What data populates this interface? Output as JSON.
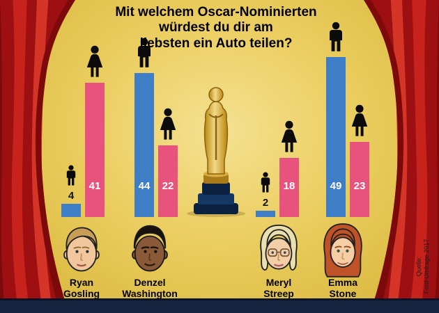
{
  "title": {
    "lines": [
      "Mit welchem Oscar-Nominierten",
      "würdest du dir am",
      "liebsten ein Auto teilen?"
    ]
  },
  "chart_data": {
    "type": "bar",
    "title": "Mit welchem Oscar-Nominierten würdest du dir am liebsten ein Auto teilen?",
    "categories": [
      "Ryan Gosling",
      "Denzel Washington",
      "Meryl Streep",
      "Emma Stone"
    ],
    "series": [
      {
        "name": "male",
        "icon": "male-pictogram-icon",
        "color": "#3d7ec6",
        "values": [
          4,
          44,
          2,
          49
        ]
      },
      {
        "name": "female",
        "icon": "female-pictogram-icon",
        "color": "#e8537d",
        "values": [
          41,
          22,
          18,
          23
        ]
      }
    ],
    "ylim": [
      0,
      50
    ],
    "value_labels": true,
    "legend_position": "pictograms-above-bars",
    "grid": false
  },
  "people": [
    {
      "first": "Ryan",
      "last": "Gosling"
    },
    {
      "first": "Denzel",
      "last": "Washington"
    },
    {
      "first": "Meryl",
      "last": "Streep"
    },
    {
      "first": "Emma",
      "last": "Stone"
    }
  ],
  "source": {
    "lines": [
      "Quelle:",
      "Ford-Umfrage 2017"
    ]
  },
  "colors": {
    "background_gold": "#eccf63",
    "curtain_red": "#a51216",
    "bar_male": "#3d7ec6",
    "bar_female": "#e8537d",
    "stage_band": "#15253f",
    "oscar_gold": "#d8a831",
    "pedestal_navy": "#0c2140"
  }
}
